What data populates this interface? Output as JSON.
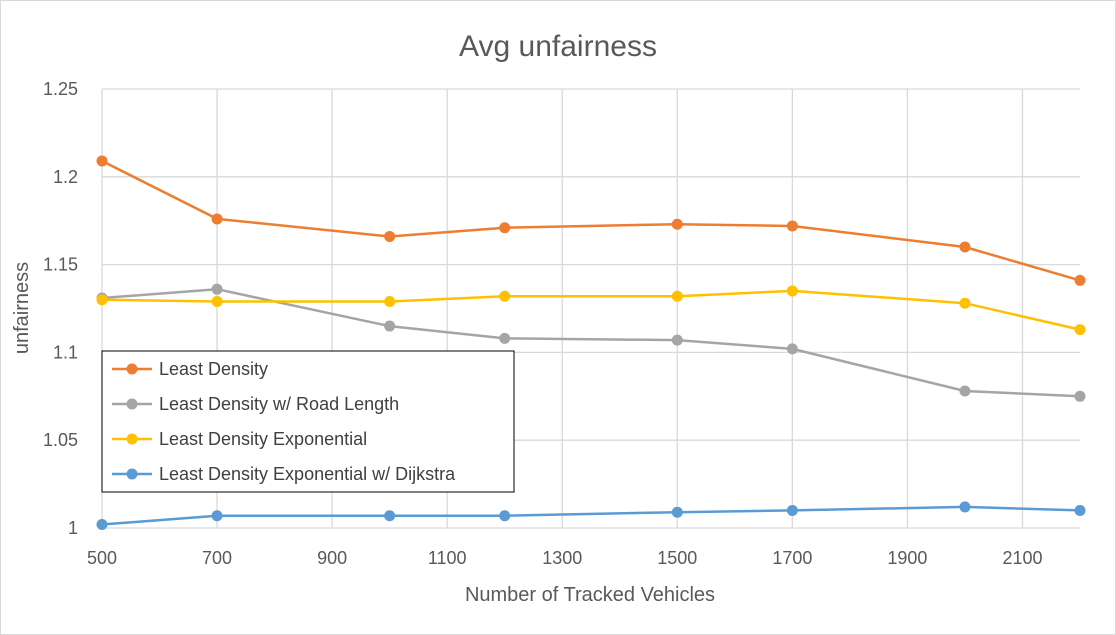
{
  "chart_data": {
    "type": "line",
    "title": "Avg unfairness",
    "xlabel": "Number of Tracked Vehicles",
    "ylabel": "unfairness",
    "xlim": [
      500,
      2200
    ],
    "ylim": [
      1,
      1.25
    ],
    "x_ticks": [
      500,
      700,
      900,
      1100,
      1300,
      1500,
      1700,
      1900,
      2100
    ],
    "y_ticks": [
      1,
      1.05,
      1.1,
      1.15,
      1.2,
      1.25
    ],
    "y_tick_labels": [
      "1",
      "1.05",
      "1.1",
      "1.15",
      "1.2",
      "1.25"
    ],
    "grid": true,
    "legend_position": "left",
    "x": [
      500,
      700,
      1000,
      1200,
      1500,
      1700,
      2000,
      2200
    ],
    "series": [
      {
        "name": "Least Density",
        "color": "#ED7D31",
        "values": [
          1.209,
          1.176,
          1.166,
          1.171,
          1.173,
          1.172,
          1.16,
          1.141
        ]
      },
      {
        "name": "Least Density w/ Road Length",
        "color": "#A5A5A5",
        "values": [
          1.131,
          1.136,
          1.115,
          1.108,
          1.107,
          1.102,
          1.078,
          1.075
        ]
      },
      {
        "name": "Least Density Exponential",
        "color": "#FFC000",
        "values": [
          1.13,
          1.129,
          1.129,
          1.132,
          1.132,
          1.135,
          1.128,
          1.113
        ]
      },
      {
        "name": "Least Density Exponential w/ Dijkstra",
        "color": "#5B9BD5",
        "values": [
          1.002,
          1.007,
          1.007,
          1.007,
          1.009,
          1.01,
          1.012,
          1.01
        ]
      }
    ]
  }
}
